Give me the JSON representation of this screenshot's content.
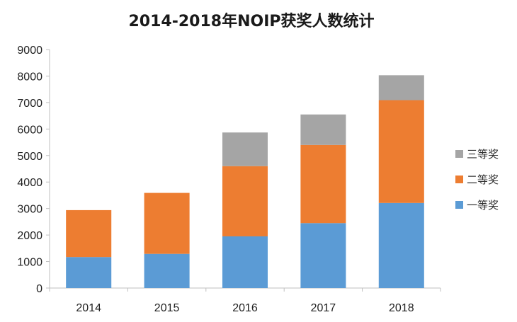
{
  "chart_data": {
    "type": "bar",
    "stacked": true,
    "title": "2014-2018年NOIP获奖人数统计",
    "categories": [
      "2014",
      "2015",
      "2016",
      "2017",
      "2018"
    ],
    "series": [
      {
        "name": "一等奖",
        "values": [
          1170,
          1290,
          1950,
          2450,
          3210
        ],
        "color": "#5b9bd5"
      },
      {
        "name": "二等奖",
        "values": [
          1770,
          2300,
          2650,
          2950,
          3880
        ],
        "color": "#ed7d31"
      },
      {
        "name": "三等奖",
        "values": [
          0,
          0,
          1270,
          1150,
          940
        ],
        "color": "#a5a5a5"
      }
    ],
    "ylim": [
      0,
      9000
    ],
    "yticks": [
      0,
      1000,
      2000,
      3000,
      4000,
      5000,
      6000,
      7000,
      8000,
      9000
    ],
    "grid": false,
    "legend_position": "right",
    "legend_order": [
      "三等奖",
      "二等奖",
      "一等奖"
    ]
  }
}
